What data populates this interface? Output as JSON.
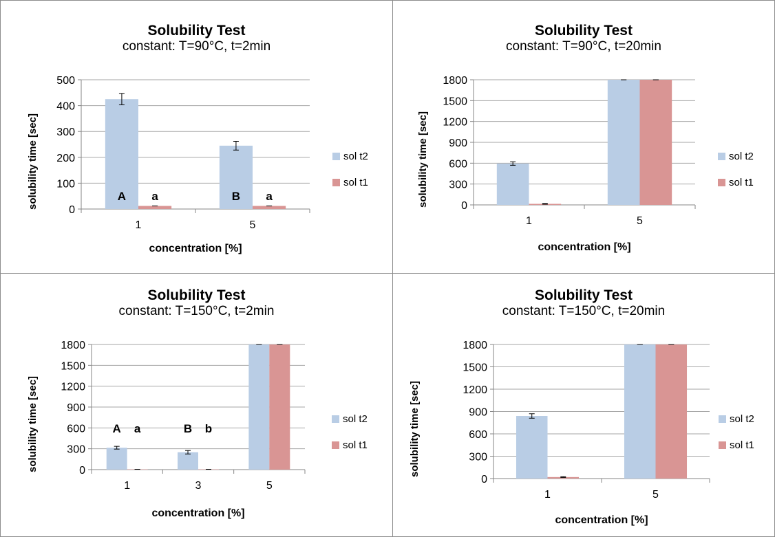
{
  "colors": {
    "sol_t2": "#b9cde5",
    "sol_t1": "#d99594",
    "grid": "#a6a6a6",
    "axis": "#868686"
  },
  "chart_data": [
    {
      "type": "bar",
      "title": "Solubility Test",
      "subtitle": "constant: T=90°C, t=2min",
      "xlabel": "concentration [%]",
      "ylabel": "solubility time [sec]",
      "categories": [
        "1",
        "5"
      ],
      "ylim": [
        0,
        500
      ],
      "yticks": [
        0,
        100,
        200,
        300,
        400,
        500
      ],
      "grid": true,
      "legend": "right",
      "series": [
        {
          "name": "sol t2",
          "values": [
            425,
            245
          ],
          "errors": [
            22,
            17
          ]
        },
        {
          "name": "sol t1",
          "values": [
            12,
            12
          ],
          "errors": [
            0,
            0
          ]
        }
      ],
      "annotations": [
        {
          "category": "1",
          "series": 0,
          "text": "A"
        },
        {
          "category": "1",
          "series": 1,
          "text": "a"
        },
        {
          "category": "5",
          "series": 0,
          "text": "B"
        },
        {
          "category": "5",
          "series": 1,
          "text": "a"
        }
      ]
    },
    {
      "type": "bar",
      "title": "Solubility Test",
      "subtitle": "constant: T=90°C, t=20min",
      "xlabel": "concentration [%]",
      "ylabel": "solubility time [sec]",
      "categories": [
        "1",
        "5"
      ],
      "ylim": [
        0,
        1800
      ],
      "yticks": [
        0,
        300,
        600,
        900,
        1200,
        1500,
        1800
      ],
      "grid": true,
      "legend": "right",
      "series": [
        {
          "name": "sol t2",
          "values": [
            595,
            1800
          ],
          "errors": [
            25,
            0
          ]
        },
        {
          "name": "sol t1",
          "values": [
            15,
            1800
          ],
          "errors": [
            5,
            0
          ]
        }
      ],
      "annotations": []
    },
    {
      "type": "bar",
      "title": "Solubility Test",
      "subtitle": "constant: T=150°C, t=2min",
      "xlabel": "concentration [%]",
      "ylabel": "solubility time [sec]",
      "categories": [
        "1",
        "3",
        "5"
      ],
      "ylim": [
        0,
        1800
      ],
      "yticks": [
        0,
        300,
        600,
        900,
        1200,
        1500,
        1800
      ],
      "grid": true,
      "legend": "right",
      "series": [
        {
          "name": "sol t2",
          "values": [
            315,
            250,
            1800
          ],
          "errors": [
            20,
            25,
            0
          ]
        },
        {
          "name": "sol t1",
          "values": [
            5,
            5,
            1800
          ],
          "errors": [
            0,
            0,
            0
          ]
        }
      ],
      "annotations": [
        {
          "category": "1",
          "series": 0,
          "text": "A"
        },
        {
          "category": "1",
          "series": 1,
          "text": "a"
        },
        {
          "category": "3",
          "series": 0,
          "text": "B"
        },
        {
          "category": "3",
          "series": 1,
          "text": "b"
        }
      ]
    },
    {
      "type": "bar",
      "title": "Solubility Test",
      "subtitle": "constant: T=150°C, t=20min",
      "xlabel": "concentration [%]",
      "ylabel": "solubility time [sec]",
      "categories": [
        "1",
        "5"
      ],
      "ylim": [
        0,
        1800
      ],
      "yticks": [
        0,
        300,
        600,
        900,
        1200,
        1500,
        1800
      ],
      "grid": true,
      "legend": "right",
      "series": [
        {
          "name": "sol t2",
          "values": [
            840,
            1800
          ],
          "errors": [
            30,
            0
          ]
        },
        {
          "name": "sol t1",
          "values": [
            20,
            1800
          ],
          "errors": [
            5,
            0
          ]
        }
      ],
      "annotations": []
    }
  ]
}
